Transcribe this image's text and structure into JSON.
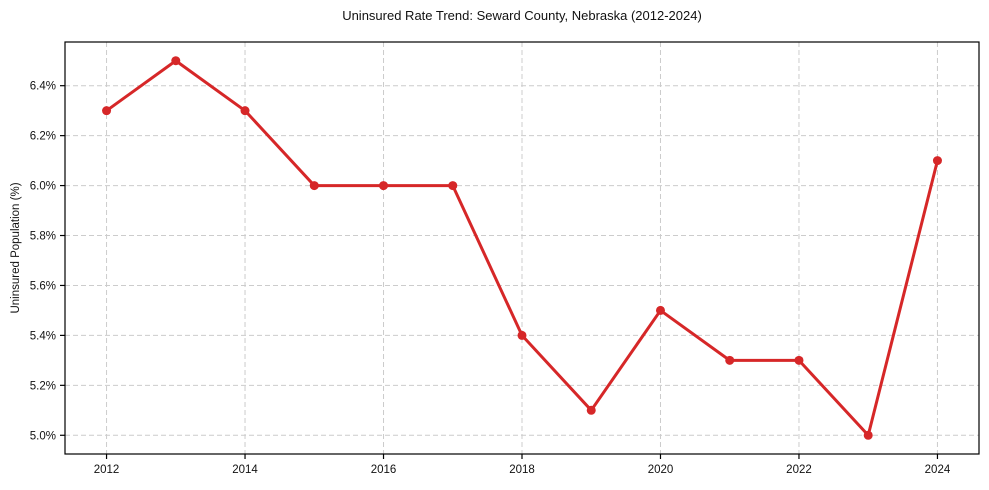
{
  "figure": {
    "background": "#ffffff"
  },
  "chart_data": {
    "type": "line",
    "title": "Uninsured Rate Trend: Seward County, Nebraska (2012-2024)",
    "xlabel": "",
    "ylabel": "Uninsured Population (%)",
    "x": [
      2012,
      2013,
      2014,
      2015,
      2016,
      2017,
      2018,
      2019,
      2020,
      2021,
      2022,
      2023,
      2024
    ],
    "series": [
      {
        "name": "Uninsured Population (%)",
        "values": [
          6.3,
          6.5,
          6.3,
          6.0,
          6.0,
          6.0,
          5.4,
          5.1,
          5.5,
          5.3,
          5.3,
          5.0,
          6.1
        ]
      }
    ],
    "x_ticks": [
      2012,
      2014,
      2016,
      2018,
      2020,
      2022,
      2024
    ],
    "x_tick_labels": [
      "2012",
      "2014",
      "2016",
      "2018",
      "2020",
      "2022",
      "2024"
    ],
    "y_ticks": [
      5.0,
      5.2,
      5.4,
      5.6,
      5.8,
      6.0,
      6.2,
      6.4
    ],
    "y_tick_labels": [
      "5.0%",
      "5.2%",
      "5.4%",
      "5.6%",
      "5.8%",
      "6.0%",
      "6.2%",
      "6.4%"
    ],
    "xlim": [
      2011.4,
      2024.6
    ],
    "ylim": [
      4.925,
      6.575
    ],
    "grid": true,
    "grid_style": "dashed",
    "legend_position": "none",
    "line_color": "#d62728",
    "marker": "circle",
    "marker_radius": 4.5,
    "line_width": 3,
    "grid_color": "#cccccc",
    "axis_color": "#000000",
    "tick_color": "#000000",
    "text_color": "#111111"
  }
}
